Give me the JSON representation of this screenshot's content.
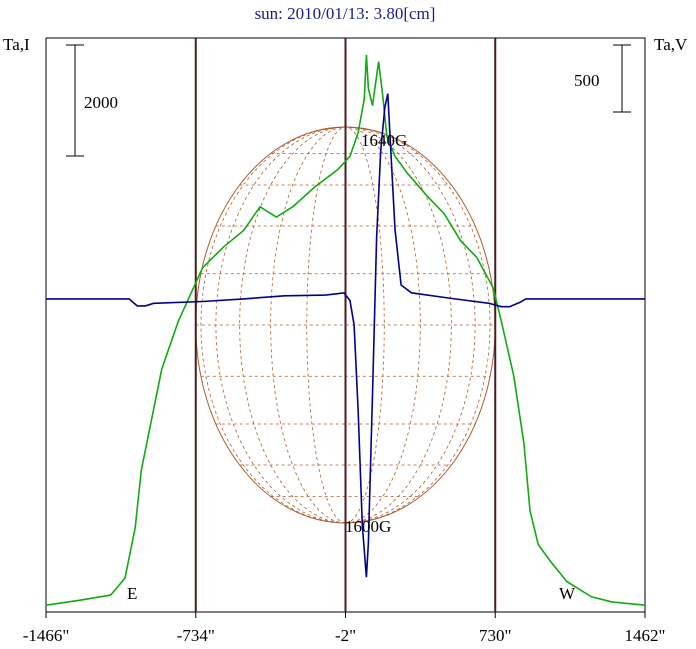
{
  "chart_data": {
    "type": "line",
    "title": "sun: 2010/01/13: 3.80[cm]",
    "left_axis_label": "Ta,I",
    "right_axis_label": "Ta,V",
    "x_tick_labels": [
      "-1466\"",
      "-734\"",
      "-2\"",
      "730\"",
      "1462\""
    ],
    "x_ticks": [
      -1466,
      -734,
      -2,
      730,
      1462
    ],
    "xlim": [
      -1466,
      1462
    ],
    "limb_lines_x": [
      -734,
      -2,
      730
    ],
    "limb_labels": {
      "east": "E",
      "west": "W"
    },
    "scale_bar_left": {
      "label": "2000",
      "value": 2000
    },
    "scale_bar_right": {
      "label": "500",
      "value": 500
    },
    "annotations": {
      "max_field": "1640G",
      "min_field": "1600G"
    },
    "solar_radius_arcsec": 732,
    "colors": {
      "intensity": "#11aa11",
      "polarization": "#00008b",
      "limb_lines": "#4a1c1c",
      "disk_grid": "#b05a28",
      "title": "#1a1a8c"
    },
    "series": [
      {
        "key": "I",
        "y_axis": "left",
        "ylim": [
          0,
          17000
        ],
        "points": [
          [
            -1466,
            200
          ],
          [
            -1300,
            350
          ],
          [
            -1150,
            500
          ],
          [
            -1080,
            1000
          ],
          [
            -1030,
            2500
          ],
          [
            -1000,
            4200
          ],
          [
            -940,
            6000
          ],
          [
            -900,
            7200
          ],
          [
            -820,
            8600
          ],
          [
            -760,
            9400
          ],
          [
            -700,
            10200
          ],
          [
            -600,
            10800
          ],
          [
            -500,
            11300
          ],
          [
            -420,
            12000
          ],
          [
            -340,
            11700
          ],
          [
            -260,
            12000
          ],
          [
            -150,
            12600
          ],
          [
            -40,
            13100
          ],
          [
            20,
            13500
          ],
          [
            60,
            14200
          ],
          [
            90,
            15200
          ],
          [
            100,
            16500
          ],
          [
            110,
            15500
          ],
          [
            130,
            15000
          ],
          [
            160,
            16300
          ],
          [
            180,
            15300
          ],
          [
            200,
            14100
          ],
          [
            240,
            13500
          ],
          [
            300,
            13000
          ],
          [
            400,
            12300
          ],
          [
            480,
            11800
          ],
          [
            560,
            11000
          ],
          [
            640,
            10500
          ],
          [
            720,
            9600
          ],
          [
            760,
            8600
          ],
          [
            820,
            7000
          ],
          [
            870,
            5000
          ],
          [
            900,
            3000
          ],
          [
            940,
            2000
          ],
          [
            1000,
            1500
          ],
          [
            1080,
            900
          ],
          [
            1200,
            450
          ],
          [
            1300,
            300
          ],
          [
            1462,
            200
          ]
        ]
      },
      {
        "key": "V",
        "y_axis": "right",
        "ylim": [
          -1800,
          1500
        ],
        "points": [
          [
            -1466,
            0
          ],
          [
            -1060,
            0
          ],
          [
            -1020,
            -40
          ],
          [
            -980,
            -40
          ],
          [
            -940,
            -25
          ],
          [
            -700,
            -15
          ],
          [
            -500,
            0
          ],
          [
            -300,
            18
          ],
          [
            -100,
            22
          ],
          [
            -40,
            30
          ],
          [
            -10,
            35
          ],
          [
            20,
            -10
          ],
          [
            40,
            -150
          ],
          [
            60,
            -650
          ],
          [
            80,
            -1300
          ],
          [
            100,
            -1600
          ],
          [
            110,
            -1400
          ],
          [
            130,
            -550
          ],
          [
            150,
            350
          ],
          [
            170,
            850
          ],
          [
            190,
            1100
          ],
          [
            205,
            1180
          ],
          [
            215,
            950
          ],
          [
            240,
            400
          ],
          [
            270,
            80
          ],
          [
            320,
            35
          ],
          [
            500,
            5
          ],
          [
            700,
            -25
          ],
          [
            760,
            -45
          ],
          [
            800,
            -45
          ],
          [
            850,
            -20
          ],
          [
            880,
            0
          ],
          [
            1462,
            0
          ]
        ]
      }
    ]
  }
}
